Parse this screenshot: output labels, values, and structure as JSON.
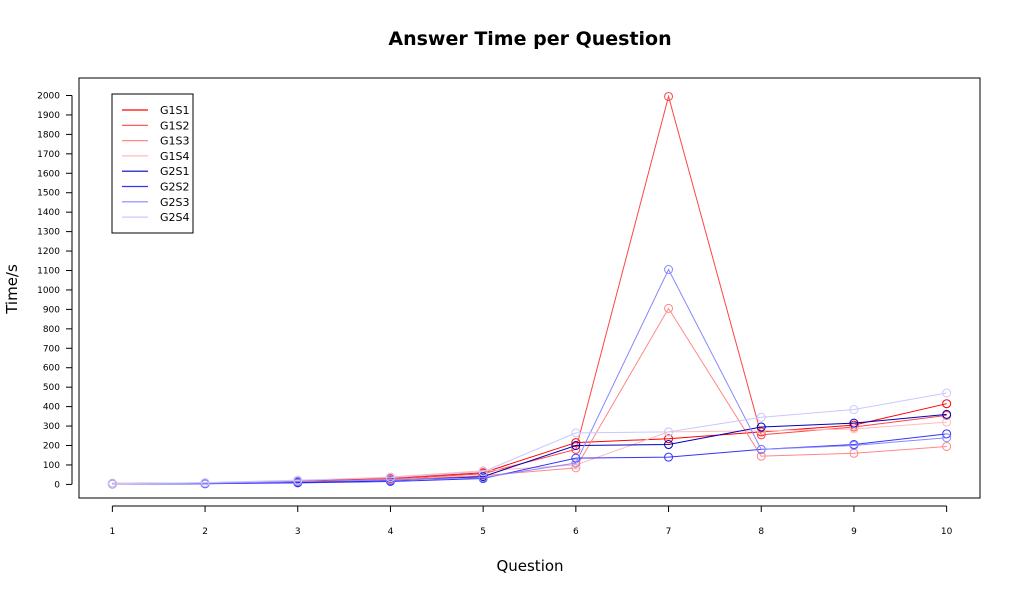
{
  "chart_data": {
    "type": "line",
    "title": "Answer Time per Question",
    "xlabel": "Question",
    "ylabel": "Time/s",
    "x": [
      1,
      2,
      3,
      4,
      5,
      6,
      7,
      8,
      9,
      10
    ],
    "ylim": [
      -70,
      2090
    ],
    "xlim": [
      0.64,
      10.36
    ],
    "yticks": [
      0,
      100,
      200,
      300,
      400,
      500,
      600,
      700,
      800,
      900,
      1000,
      1100,
      1200,
      1300,
      1400,
      1500,
      1600,
      1700,
      1800,
      1900,
      2000
    ],
    "xticks": [
      1,
      2,
      3,
      4,
      5,
      6,
      7,
      8,
      9,
      10
    ],
    "grid": false,
    "legend_position": "top-left",
    "series": [
      {
        "name": "G1S1",
        "color": "#ff0000",
        "values": [
          5,
          8,
          18,
          32,
          60,
          215,
          235,
          270,
          305,
          415
        ]
      },
      {
        "name": "G1S2",
        "color": "#ff4444",
        "values": [
          3,
          6,
          15,
          28,
          55,
          180,
          1995,
          255,
          295,
          355
        ]
      },
      {
        "name": "G1S3",
        "color": "#ff8888",
        "values": [
          2,
          4,
          12,
          25,
          45,
          85,
          905,
          145,
          160,
          195
        ]
      },
      {
        "name": "G1S4",
        "color": "#ffbbbb",
        "values": [
          4,
          7,
          20,
          38,
          70,
          100,
          270,
          275,
          285,
          320
        ]
      },
      {
        "name": "G2S1",
        "color": "#0000bb",
        "values": [
          3,
          4,
          10,
          20,
          40,
          200,
          205,
          295,
          315,
          360
        ]
      },
      {
        "name": "G2S2",
        "color": "#3333ff",
        "values": [
          2,
          3,
          8,
          15,
          30,
          135,
          140,
          180,
          205,
          260
        ]
      },
      {
        "name": "G2S3",
        "color": "#8888ff",
        "values": [
          2,
          5,
          14,
          22,
          35,
          110,
          1105,
          180,
          200,
          240
        ]
      },
      {
        "name": "G2S4",
        "color": "#c8c8ff",
        "values": [
          4,
          9,
          22,
          35,
          65,
          265,
          270,
          345,
          385,
          470
        ]
      }
    ]
  }
}
